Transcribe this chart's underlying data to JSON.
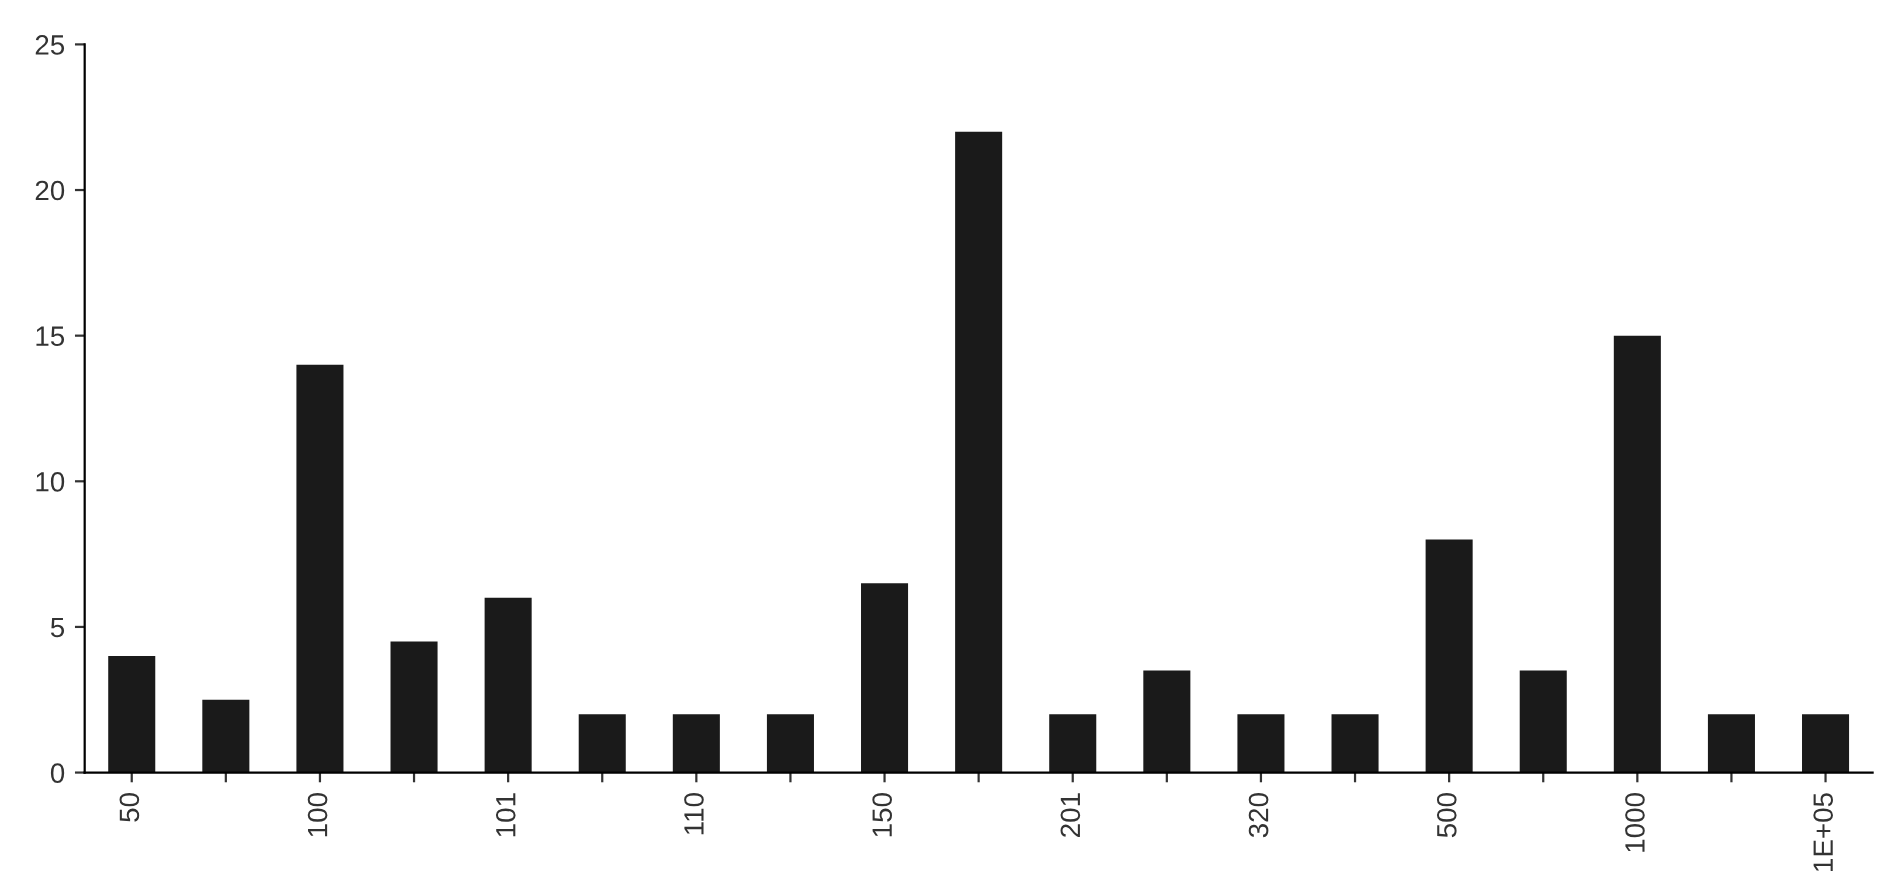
{
  "chart_data": {
    "type": "bar",
    "categories": [
      "50",
      null,
      "100",
      null,
      "101",
      null,
      "110",
      null,
      "150",
      null,
      "201",
      null,
      "320",
      null,
      "500",
      null,
      "1000",
      null,
      "1E+05"
    ],
    "values": [
      4,
      2.5,
      14,
      4.5,
      6,
      2,
      2,
      2,
      6.5,
      22,
      2,
      3.5,
      2,
      2,
      8,
      3.5,
      15,
      2,
      2
    ],
    "color": "#1a1a1a",
    "ylim": [
      0,
      25
    ],
    "yticks": [
      0,
      5,
      10,
      15,
      20,
      25
    ],
    "grid": false,
    "legend": false
  }
}
